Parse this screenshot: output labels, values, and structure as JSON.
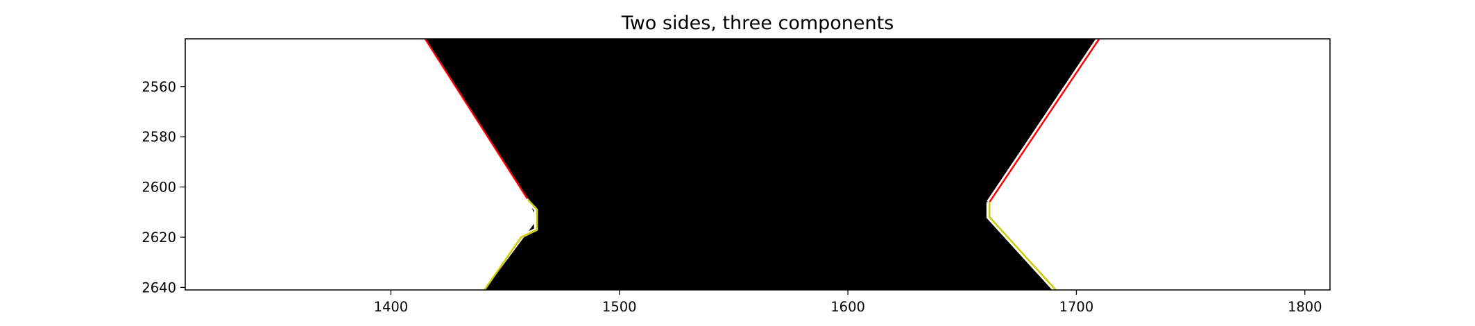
{
  "chart_data": {
    "type": "line",
    "title": "Two sides, three components",
    "xlabel": "",
    "ylabel": "",
    "xlim": [
      1310,
      1811
    ],
    "ylim": [
      2541,
      2641
    ],
    "y_inverted": true,
    "grid": false,
    "x_ticks": [
      1400,
      1500,
      1600,
      1700,
      1800
    ],
    "y_ticks": [
      2560,
      2580,
      2600,
      2620,
      2640
    ],
    "x_tick_labels": [
      "1400",
      "1500",
      "1600",
      "1700",
      "1800"
    ],
    "y_tick_labels": [
      "2560",
      "2580",
      "2600",
      "2620",
      "2640"
    ],
    "background_image": {
      "description_colors": {
        "outside": "#ffffff",
        "inside": "#000000"
      },
      "black_region": {
        "left_edge": {
          "x": [
            1415,
            1460,
            1464,
            1441
          ],
          "y": [
            2541,
            2605,
            2613,
            2641
          ]
        },
        "right_edge": {
          "x": [
            1710,
            1662,
            1662,
            1691
          ],
          "y": [
            2541,
            2606,
            2612,
            2641
          ]
        }
      }
    },
    "series": [
      {
        "color": "#ff0000",
        "x": [
          1415,
          1460
        ],
        "y": [
          2541,
          2605
        ]
      },
      {
        "color": "#cccc00",
        "x": [
          1460,
          1464,
          1464,
          1457,
          1441
        ],
        "y": [
          2605,
          2609,
          2617,
          2620,
          2641
        ]
      },
      {
        "color": "#ff0000",
        "x": [
          1710,
          1662
        ],
        "y": [
          2541,
          2606
        ]
      },
      {
        "color": "#cccc00",
        "x": [
          1662,
          1662,
          1691
        ],
        "y": [
          2606,
          2612,
          2641
        ]
      }
    ]
  }
}
